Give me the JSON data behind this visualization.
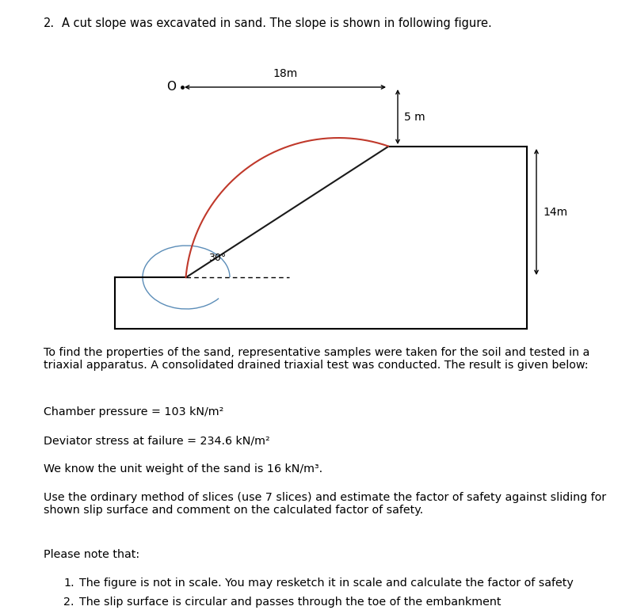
{
  "title_number": "2.",
  "title_text": "A cut slope was excavated in sand. The slope is shown in following figure.",
  "dim_18m": "18m",
  "dim_5m": "5 m",
  "dim_14m": "14m",
  "angle_label": "30°",
  "para1": "To find the properties of the sand, representative samples were taken for the soil and tested in a\ntriaxial apparatus. A consolidated drained triaxial test was conducted. The result is given below:",
  "para2_label": "Chamber pressure = 103 kN/m²",
  "para3_label": "Deviator stress at failure = 234.6 kN/m²",
  "para4_label": "We know the unit weight of the sand is 16 kN/m³.",
  "para5": "Use the ordinary method of slices (use 7 slices) and estimate the factor of safety against sliding for\nshown slip surface and comment on the calculated factor of safety.",
  "para6_label": "Please note that:",
  "item1": "The figure is not in scale. You may resketch it in scale and calculate the factor of safety",
  "item2": "The slip surface is circular and passes through the toe of the embankment",
  "point_O_label": "O",
  "bg_color": "#ffffff",
  "text_color": "#000000",
  "slope_line_color": "#1a1a1a",
  "arc_color": "#c0392b",
  "arc_angle_color": "#5b8db8",
  "box_color": "#000000"
}
